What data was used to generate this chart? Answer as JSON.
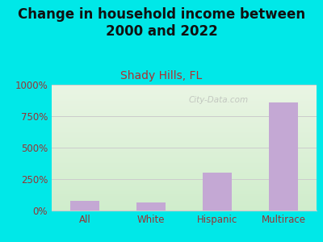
{
  "title": "Change in household income between\n2000 and 2022",
  "subtitle": "Shady Hills, FL",
  "categories": [
    "All",
    "White",
    "Hispanic",
    "Multirace"
  ],
  "values": [
    75,
    65,
    300,
    860
  ],
  "bar_color": "#c4a8d4",
  "bg_outer": "#00e8e8",
  "bg_chart_top": "#eaf5e4",
  "bg_chart_bottom": "#d0edcc",
  "title_fontsize": 12,
  "subtitle_fontsize": 10,
  "subtitle_color": "#b03030",
  "title_color": "#111111",
  "tick_color": "#993333",
  "ylim": [
    0,
    1000
  ],
  "yticks": [
    0,
    250,
    500,
    750,
    1000
  ],
  "ytick_labels": [
    "0%",
    "250%",
    "500%",
    "750%",
    "1000%"
  ],
  "watermark": "City-Data.com",
  "grid_color": "#cccccc"
}
